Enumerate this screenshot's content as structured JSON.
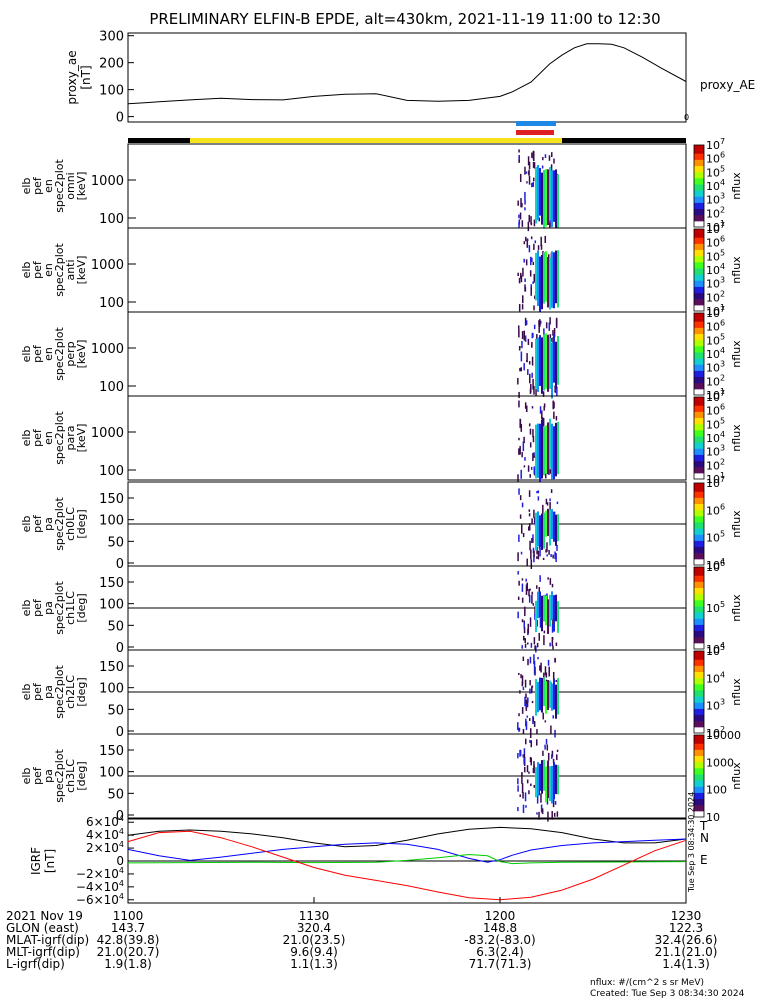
{
  "chart_data": {
    "type": "spectrogram",
    "title": "PRELIMINARY ELFIN-B EPDE, alt=430km, 2021-11-19 11:00 to 12:30",
    "time_range": [
      "11:00",
      "12:30"
    ],
    "proxy_ae": {
      "ylabel": [
        "proxy_ae",
        "[nT]"
      ],
      "legend": "proxy_AE",
      "ylim": [
        -20,
        310
      ],
      "yticks": [
        "0",
        "100",
        "200",
        "300"
      ],
      "series": [
        {
          "name": "proxy_AE",
          "t": [
            0,
            3,
            5,
            10,
            15,
            20,
            25,
            30,
            35,
            40,
            45,
            50,
            55,
            60,
            62,
            65,
            68,
            70,
            72,
            74,
            76,
            78,
            80,
            83,
            86,
            90
          ],
          "v": [
            48,
            52,
            55,
            62,
            68,
            63,
            62,
            75,
            83,
            85,
            60,
            57,
            60,
            75,
            92,
            128,
            195,
            228,
            255,
            270,
            270,
            268,
            255,
            220,
            180,
            130
          ]
        }
      ]
    },
    "bar_labels": {
      "tick_bottom": "0"
    },
    "energy_panels": [
      {
        "ylabel": [
          "elb",
          "pef",
          "en",
          "spec2plot",
          "omni",
          "[keV]"
        ],
        "yticks": [
          "100",
          "1000"
        ],
        "colorbar": {
          "label": "nflux",
          "ticks": [
            "10",
            "10",
            "10",
            "10",
            "10",
            "10",
            "10"
          ],
          "exps": [
            "1",
            "2",
            "3",
            "4",
            "5",
            "6",
            "7"
          ]
        }
      },
      {
        "ylabel": [
          "elb",
          "pef",
          "en",
          "spec2plot",
          "anti",
          "[keV]"
        ],
        "yticks": [
          "100",
          "1000"
        ],
        "colorbar": {
          "label": "nflux",
          "ticks": [
            "10",
            "10",
            "10",
            "10",
            "10",
            "10",
            "10"
          ],
          "exps": [
            "1",
            "2",
            "3",
            "4",
            "5",
            "6",
            "7"
          ]
        }
      },
      {
        "ylabel": [
          "elb",
          "pef",
          "en",
          "spec2plot",
          "perp",
          "[keV]"
        ],
        "yticks": [
          "100",
          "1000"
        ],
        "colorbar": {
          "label": "nflux",
          "ticks": [
            "10",
            "10",
            "10",
            "10",
            "10",
            "10",
            "10"
          ],
          "exps": [
            "1",
            "2",
            "3",
            "4",
            "5",
            "6",
            "7"
          ]
        }
      },
      {
        "ylabel": [
          "elb",
          "pef",
          "en",
          "spec2plot",
          "para",
          "[keV]"
        ],
        "yticks": [
          "100",
          "1000"
        ],
        "colorbar": {
          "label": "nflux",
          "ticks": [
            "10",
            "10",
            "10",
            "10",
            "10",
            "10",
            "10"
          ],
          "exps": [
            "1",
            "2",
            "3",
            "4",
            "5",
            "6",
            "7"
          ]
        }
      }
    ],
    "pitch_panels": [
      {
        "ylabel": [
          "elb",
          "pef",
          "pa",
          "spec2plot",
          "ch0LC",
          "[deg]"
        ],
        "yticks": [
          "0",
          "50",
          "100",
          "150"
        ],
        "colorbar": {
          "label": "nflux",
          "ticks": [
            "10",
            "10",
            "10",
            "10"
          ],
          "exps": [
            "4",
            "5",
            "6",
            "7"
          ]
        }
      },
      {
        "ylabel": [
          "elb",
          "pef",
          "pa",
          "spec2plot",
          "ch1LC",
          "[deg]"
        ],
        "yticks": [
          "0",
          "50",
          "100",
          "150"
        ],
        "colorbar": {
          "label": "nflux",
          "ticks": [
            "10",
            "10",
            "10"
          ],
          "exps": [
            "4",
            "5",
            "6"
          ]
        }
      },
      {
        "ylabel": [
          "elb",
          "pef",
          "pa",
          "spec2plot",
          "ch2LC",
          "[deg]"
        ],
        "yticks": [
          "0",
          "50",
          "100",
          "150"
        ],
        "colorbar": {
          "label": "nflux",
          "ticks": [
            "10",
            "10",
            "10",
            "10"
          ],
          "exps": [
            "2",
            "3",
            "4",
            "5"
          ]
        }
      },
      {
        "ylabel": [
          "elb",
          "pef",
          "pa",
          "spec2plot",
          "ch3LC",
          "[deg]"
        ],
        "yticks": [
          "0",
          "50",
          "100",
          "150"
        ],
        "colorbar": {
          "label": "nflux",
          "ticks": [
            "10",
            "100",
            "1000",
            "10000"
          ],
          "exps": [
            "",
            "",
            "",
            ""
          ]
        }
      }
    ],
    "igrf": {
      "ylabel": [
        "IGRF",
        "[nT]"
      ],
      "ylim": [
        -65000,
        65000
      ],
      "yticks": [
        {
          "m": "6",
          "s": "",
          "e": "4"
        },
        {
          "m": "4",
          "s": "",
          "e": "4"
        },
        {
          "m": "2",
          "s": "",
          "e": "4"
        },
        {
          "m": "0",
          "s": "",
          "e": ""
        },
        {
          "m": "2",
          "s": "−",
          "e": "4"
        },
        {
          "m": "4",
          "s": "−",
          "e": "4"
        },
        {
          "m": "6",
          "s": "−",
          "e": "4"
        }
      ],
      "legend": [
        "T",
        "N",
        "E"
      ],
      "colors": {
        "T": "#000000",
        "N": "#0000ff",
        "E": "#00cc00",
        "Z": "#ff0000"
      },
      "series": [
        {
          "name": "T",
          "t": [
            0,
            5,
            10,
            15,
            20,
            25,
            30,
            35,
            40,
            45,
            50,
            55,
            60,
            65,
            70,
            75,
            80,
            85,
            90
          ],
          "v": [
            40000,
            46000,
            48000,
            46000,
            42000,
            36000,
            28000,
            22000,
            24000,
            32000,
            42000,
            49000,
            52000,
            50000,
            44000,
            34000,
            28000,
            28000,
            34000
          ]
        },
        {
          "name": "N",
          "t": [
            0,
            5,
            10,
            15,
            20,
            25,
            30,
            35,
            40,
            45,
            50,
            55,
            58,
            60,
            62,
            65,
            70,
            75,
            80,
            85,
            90
          ],
          "v": [
            18000,
            8000,
            1000,
            6000,
            12000,
            18000,
            22000,
            26000,
            28000,
            26000,
            18000,
            4000,
            -2000,
            2000,
            9000,
            17000,
            24000,
            28000,
            30000,
            32000,
            34000
          ]
        },
        {
          "name": "E",
          "t": [
            0,
            10,
            20,
            30,
            40,
            45,
            50,
            55,
            58,
            60,
            62,
            65,
            70,
            80,
            90
          ],
          "v": [
            -3000,
            -2500,
            -2000,
            -2500,
            -2000,
            1000,
            5000,
            10000,
            8000,
            -1000,
            -4000,
            -3000,
            -2000,
            -1500,
            -1000
          ]
        },
        {
          "name": "Z",
          "t": [
            0,
            5,
            10,
            15,
            20,
            25,
            30,
            35,
            40,
            45,
            50,
            55,
            60,
            65,
            70,
            75,
            80,
            85,
            90
          ],
          "v": [
            30000,
            44000,
            46000,
            36000,
            22000,
            6000,
            -10000,
            -22000,
            -30000,
            -38000,
            -48000,
            -57000,
            -60000,
            -56000,
            -45000,
            -28000,
            -6000,
            16000,
            32000
          ]
        }
      ]
    },
    "xaxis_table": {
      "row_labels": [
        "2021 Nov 19",
        "GLON (east)",
        "MLAT-igrf(dip)",
        "MLT-igrf(dip)",
        "L-igrf(dip)"
      ],
      "columns": [
        {
          "time": "1100",
          "vals": [
            "143.7",
            "42.8(39.8)",
            "21.0(20.7)",
            "1.9(1.8)"
          ]
        },
        {
          "time": "1130",
          "vals": [
            "320.4",
            "21.0(23.5)",
            "9.6(9.4)",
            "1.1(1.3)"
          ]
        },
        {
          "time": "1200",
          "vals": [
            "148.8",
            "-83.2(-83.0)",
            "6.3(2.4)",
            "71.7(71.3)"
          ]
        },
        {
          "time": "1230",
          "vals": [
            "122.3",
            "32.4(26.6)",
            "21.1(21.0)",
            "1.4(1.3)"
          ]
        }
      ]
    },
    "units_note": "nflux: #/(cm^2 s sr MeV)",
    "created": "Created: Tue Sep  3 08:34:30 2024",
    "side_stamp": "Tue Sep  3 08:34:30 2024"
  }
}
